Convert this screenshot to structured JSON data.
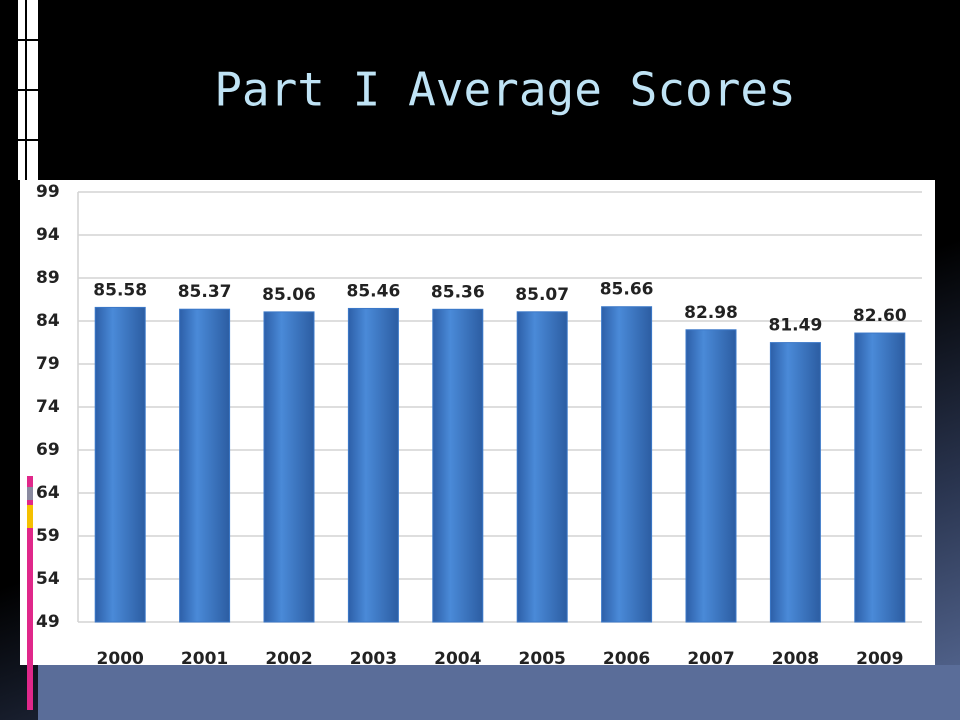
{
  "chart_data": {
    "type": "bar",
    "title": "Part I Average Scores",
    "categories": [
      "2000",
      "2001",
      "2002",
      "2003",
      "2004",
      "2005",
      "2006",
      "2007",
      "2008",
      "2009"
    ],
    "values": [
      85.58,
      85.37,
      85.06,
      85.46,
      85.36,
      85.07,
      85.66,
      82.98,
      81.49,
      82.6
    ],
    "value_labels": [
      "85.58",
      "85.37",
      "85.06",
      "85.46",
      "85.36",
      "85.07",
      "85.66",
      "82.98",
      "81.49",
      "82.60"
    ],
    "color": "#3b78c8",
    "ylim": [
      49,
      99
    ],
    "yticks": [
      49,
      54,
      59,
      64,
      69,
      74,
      79,
      84,
      89,
      94,
      99
    ],
    "grid": true
  }
}
